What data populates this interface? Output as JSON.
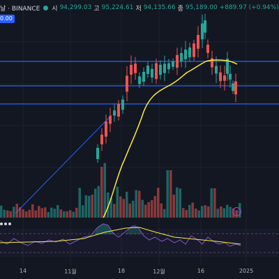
{
  "header": {
    "title_fragment": "날 · BINANCE",
    "open_label": "시",
    "open_value": "94,299.03",
    "high_label": "고",
    "high_value": "95,224.61",
    "low_label": "저",
    "low_value": "94,135.66",
    "close_label": "종",
    "close_value": "95,189.00",
    "change": "+889.97 (+0.94%)",
    "price_badge": "0.00"
  },
  "x_axis": {
    "ticks": [
      "14",
      "11월",
      "18",
      "12월",
      "16",
      "2025"
    ]
  },
  "colors": {
    "background": "#131722",
    "up": "#26a69a",
    "down": "#ef5350",
    "ma_line": "#ffeb3b",
    "trend_line": "#2962ff",
    "rsi_line": "#7e57c2"
  }
}
